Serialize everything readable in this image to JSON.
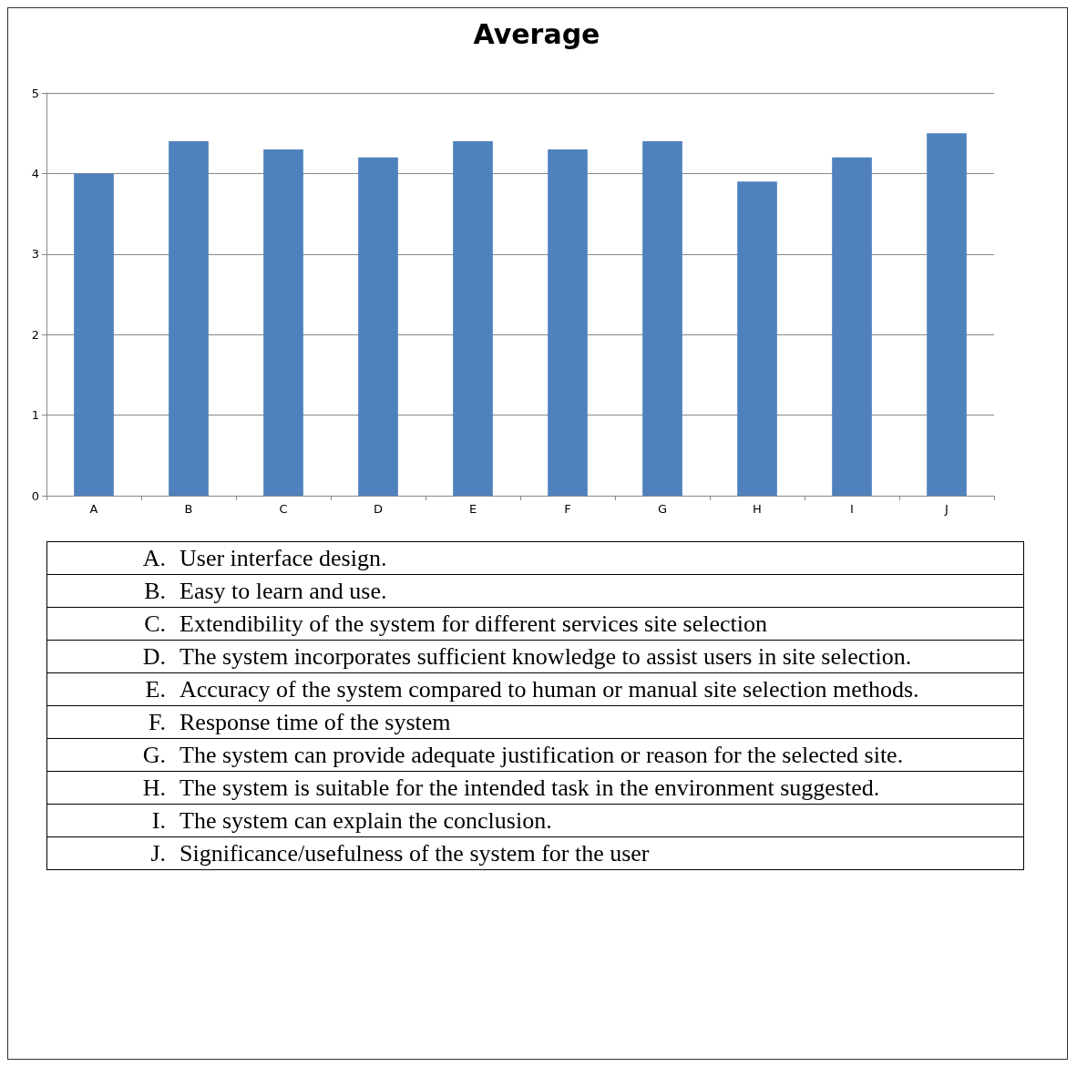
{
  "chart_data": {
    "type": "bar",
    "title": "Average",
    "categories": [
      "A",
      "B",
      "C",
      "D",
      "E",
      "F",
      "G",
      "H",
      "I",
      "J"
    ],
    "values": [
      4.0,
      4.4,
      4.3,
      4.2,
      4.4,
      4.3,
      4.4,
      3.9,
      4.2,
      4.5
    ],
    "color": "#4f81bd",
    "ylim": [
      0,
      5
    ],
    "yticks": [
      0,
      1,
      2,
      3,
      4,
      5
    ],
    "grid": "y",
    "annotations": [
      "A. User interface design.",
      "B. Easy to learn and use.",
      "C. Extendibility of the system for different services site selection",
      "D. The system incorporates sufficient knowledge to assist users in site selection.",
      "E. Accuracy of the system compared to human or manual site selection methods.",
      "F. Response time of the system",
      "G. The system can provide adequate justification or reason for the selected site.",
      "H. The system is suitable for the intended task in the environment suggested.",
      "I. The system can explain the conclusion.",
      "J. Significance/usefulness of the system for the user"
    ]
  }
}
